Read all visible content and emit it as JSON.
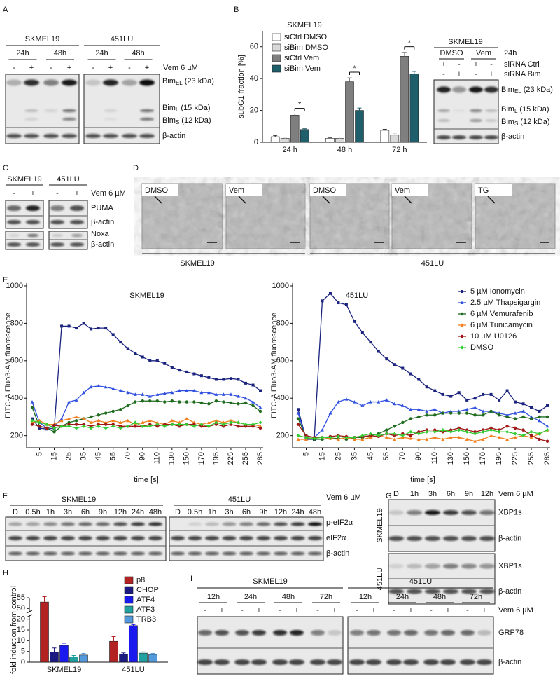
{
  "panel_labels": [
    "A",
    "B",
    "C",
    "D",
    "E",
    "F",
    "G",
    "H",
    "I"
  ],
  "panel_a": {
    "cell_lines": [
      "SKMEL19",
      "451LU"
    ],
    "times": [
      "24h",
      "48h"
    ],
    "lanes": [
      "-",
      "+"
    ],
    "treatment": "Vem 6 µM",
    "bands": [
      {
        "name": "Bim",
        "sub": "EL",
        "rest": "(23 kDa)"
      },
      {
        "name": "Bim",
        "sub": "L",
        "rest": "(15 kDa)"
      },
      {
        "name": "Bim",
        "sub": "S",
        "rest": "(12 kDa)"
      },
      "β-actin"
    ]
  },
  "panel_b_blot": {
    "cell_line": "SKMEL19",
    "groups": [
      "DMSO",
      "Vem"
    ],
    "time": "24h",
    "rows": [
      {
        "label": "siRNA Ctrl",
        "lanes": [
          "+",
          "-",
          "+",
          "-"
        ]
      },
      {
        "label": "siRNA Bim",
        "lanes": [
          "-",
          "+",
          "-",
          "+"
        ]
      }
    ],
    "bands": [
      {
        "name": "Bim",
        "sub": "EL",
        "rest": "(23 kDa)"
      },
      {
        "name": "Bim",
        "sub": "L",
        "rest": "(15 kDa)"
      },
      {
        "name": "Bim",
        "sub": "S",
        "rest": "(12 kDa)"
      },
      "β-actin"
    ]
  },
  "panel_c": {
    "cell_lines": [
      "SKMEL19",
      "451LU"
    ],
    "lanes": [
      "-",
      "+"
    ],
    "treatment": "Vem 6 µM",
    "bands": [
      "PUMA",
      "β-actin",
      "Noxa",
      "β-actin"
    ]
  },
  "panel_d": {
    "images": [
      "DMSO",
      "Vem",
      "DMSO",
      "Vem",
      "TG"
    ],
    "cell_lines": [
      "SKMEL19",
      "451LU"
    ]
  },
  "panel_f": {
    "cell_lines": [
      "SKMEL19",
      "451LU"
    ],
    "lanes": [
      "D",
      "0.5h",
      "1h",
      "3h",
      "6h",
      "9h",
      "12h",
      "24h",
      "48h"
    ],
    "treatment": "Vem 6 µM",
    "bands": [
      "p-eIF2α",
      "eIF2α",
      "β-actin"
    ]
  },
  "panel_g": {
    "lanes": [
      "D",
      "1h",
      "3h",
      "6h",
      "9h",
      "12h"
    ],
    "treatment": "Vem 6 µM",
    "cell_lines": [
      "SKMEL19",
      "451LU"
    ],
    "bands": [
      "XBP1s",
      "β-actin"
    ]
  },
  "panel_i": {
    "cell_lines": [
      "SKMEL19",
      "451LU"
    ],
    "times": [
      "12h",
      "24h",
      "48h",
      "72h"
    ],
    "lanes": [
      "-",
      "+"
    ],
    "treatment": "Vem 6 µM",
    "bands": [
      "GRP78",
      "β-actin"
    ]
  },
  "chart_data": [
    {
      "type": "bar",
      "title": "SKMEL19",
      "ylabel": "subG1 fraction [%]",
      "categories": [
        "24 h",
        "48 h",
        "72 h"
      ],
      "ylim": [
        0,
        70
      ],
      "yticks": [
        0,
        20,
        40,
        60
      ],
      "legend": "upper left",
      "significance": [
        "*",
        "*",
        "*"
      ],
      "series": [
        {
          "name": "siCtrl DMSO",
          "color": "#ffffff",
          "values": [
            3.5,
            2.5,
            7.5
          ],
          "errors": [
            0.8,
            0.5,
            0.6
          ]
        },
        {
          "name": "siBim DMSO",
          "color": "#d9d9d9",
          "values": [
            2.5,
            2.5,
            4.5
          ],
          "errors": [
            0.5,
            0.8,
            1.0
          ]
        },
        {
          "name": "siCtrl Vem",
          "color": "#7f7f7f",
          "values": [
            17,
            38,
            54
          ],
          "errors": [
            0.8,
            2.5,
            2.5
          ]
        },
        {
          "name": "siBim Vem",
          "color": "#1f5f6b",
          "values": [
            8,
            20,
            43
          ],
          "errors": [
            0.5,
            1.5,
            1.5
          ]
        }
      ]
    },
    {
      "type": "line",
      "title": "SKMEL19",
      "ylabel": "FITC-A Fluo3-AM fluorescence",
      "xlabel": "time [s]",
      "categories": [
        null,
        "5",
        null,
        "15",
        null,
        "25",
        null,
        "35",
        null,
        "45",
        null,
        "55",
        null,
        "70",
        null,
        "90",
        null,
        "110",
        null,
        "130",
        null,
        "150",
        null,
        "170",
        null,
        "195",
        null,
        "225",
        null,
        "255",
        null,
        "285"
      ],
      "ylim": [
        150,
        1000
      ],
      "yticks": [
        200,
        400,
        600,
        800,
        1000
      ],
      "legend": null,
      "series": [
        {
          "name": "5 µM Ionomycin",
          "color": "#1a237e",
          "values": [
            290,
            240,
            235,
            240,
            785,
            785,
            775,
            800,
            770,
            775,
            775,
            740,
            700,
            665,
            640,
            620,
            600,
            600,
            585,
            565,
            550,
            540,
            530,
            520,
            510,
            500,
            500,
            505,
            500,
            480,
            470,
            440
          ]
        },
        {
          "name": "2.5 µM Thapsigargin",
          "color": "#2f4fe0",
          "values": [
            380,
            270,
            240,
            250,
            290,
            380,
            390,
            430,
            460,
            465,
            460,
            450,
            440,
            430,
            420,
            420,
            410,
            420,
            425,
            430,
            440,
            440,
            440,
            430,
            430,
            420,
            420,
            420,
            410,
            400,
            380,
            350
          ]
        },
        {
          "name": "6 µM Vemurafenib",
          "color": "#1e6b1e",
          "values": [
            350,
            250,
            240,
            220,
            250,
            270,
            280,
            290,
            300,
            310,
            320,
            330,
            340,
            360,
            380,
            385,
            385,
            385,
            380,
            385,
            380,
            380,
            380,
            375,
            370,
            385,
            380,
            375,
            370,
            375,
            360,
            330
          ]
        },
        {
          "name": "6 µM Tunicamycin",
          "color": "#f08020",
          "values": [
            270,
            280,
            260,
            260,
            280,
            290,
            300,
            290,
            270,
            280,
            270,
            280,
            270,
            280,
            260,
            270,
            280,
            270,
            260,
            280,
            270,
            290,
            270,
            260,
            270,
            280,
            270,
            280,
            270,
            260,
            260,
            250
          ]
        },
        {
          "name": "10 µM U0126",
          "color": "#a01818",
          "values": [
            260,
            250,
            240,
            255,
            250,
            260,
            260,
            260,
            250,
            260,
            260,
            260,
            250,
            250,
            250,
            250,
            260,
            250,
            260,
            260,
            250,
            260,
            260,
            250,
            250,
            260,
            250,
            260,
            250,
            250,
            250,
            240
          ]
        },
        {
          "name": "DMSO",
          "color": "#33cc33",
          "values": [
            280,
            270,
            260,
            240,
            250,
            250,
            240,
            250,
            240,
            250,
            240,
            250,
            240,
            250,
            270,
            250,
            250,
            260,
            250,
            260,
            260,
            260,
            250,
            260,
            250,
            270,
            260,
            270,
            270,
            260,
            260,
            270
          ]
        }
      ]
    },
    {
      "type": "line",
      "title": "451LU",
      "ylabel": "FITC-A Fluo3-AM fluorescence",
      "xlabel": "time [s]",
      "categories": [
        null,
        "5",
        null,
        "15",
        null,
        "25",
        null,
        "35",
        null,
        "45",
        null,
        "55",
        null,
        "70",
        null,
        "90",
        null,
        "110",
        null,
        "130",
        null,
        "150",
        null,
        "170",
        null,
        "195",
        null,
        "225",
        null,
        "255",
        null,
        "285"
      ],
      "ylim": [
        150,
        1000
      ],
      "yticks": [
        200,
        400,
        600,
        800,
        1000
      ],
      "legend": "upper right",
      "series": [
        {
          "name": "5 µM Ionomycin",
          "color": "#1a237e",
          "values": [
            340,
            180,
            180,
            920,
            960,
            910,
            900,
            810,
            750,
            700,
            650,
            610,
            580,
            560,
            530,
            500,
            460,
            440,
            420,
            410,
            430,
            390,
            400,
            420,
            420,
            390,
            440,
            380,
            370,
            350,
            330,
            360
          ]
        },
        {
          "name": "2.5 µM Thapsigargin",
          "color": "#2f4fe0",
          "values": [
            320,
            180,
            190,
            230,
            320,
            380,
            395,
            380,
            360,
            380,
            380,
            390,
            370,
            360,
            340,
            340,
            330,
            340,
            320,
            330,
            330,
            340,
            350,
            330,
            330,
            320,
            310,
            320,
            330,
            300,
            280,
            250
          ]
        },
        {
          "name": "6 µM Vemurafenib",
          "color": "#1e6b1e",
          "values": [
            290,
            190,
            180,
            180,
            185,
            185,
            180,
            190,
            190,
            200,
            210,
            230,
            250,
            270,
            290,
            300,
            310,
            310,
            320,
            320,
            320,
            320,
            310,
            310,
            330,
            310,
            300,
            290,
            300,
            290,
            300,
            300
          ]
        },
        {
          "name": "6 µM Tunicamycin",
          "color": "#f08020",
          "values": [
            180,
            180,
            190,
            190,
            185,
            180,
            190,
            180,
            180,
            190,
            200,
            190,
            180,
            190,
            185,
            180,
            180,
            190,
            180,
            190,
            190,
            180,
            170,
            180,
            200,
            190,
            180,
            190,
            200,
            190,
            210,
            230
          ]
        },
        {
          "name": "10 µM U0126",
          "color": "#a01818",
          "values": [
            260,
            200,
            190,
            190,
            195,
            200,
            195,
            190,
            195,
            200,
            195,
            210,
            200,
            210,
            200,
            220,
            230,
            230,
            220,
            230,
            240,
            230,
            220,
            230,
            240,
            230,
            250,
            240,
            230,
            200,
            180,
            170
          ]
        },
        {
          "name": "DMSO",
          "color": "#33cc33",
          "values": [
            200,
            190,
            185,
            190,
            190,
            195,
            190,
            190,
            200,
            210,
            200,
            210,
            210,
            200,
            220,
            210,
            220,
            220,
            230,
            220,
            230,
            220,
            210,
            220,
            230,
            220,
            220,
            210,
            200,
            220,
            210,
            230
          ]
        }
      ]
    },
    {
      "type": "bar",
      "ylabel": "fold induction from control",
      "categories": [
        "SKMEL19",
        "451LU"
      ],
      "ylim": [
        0,
        55
      ],
      "yticks": [
        0,
        5,
        10,
        15,
        20,
        50,
        55
      ],
      "broken_axis": true,
      "legend": "upper right",
      "series": [
        {
          "name": "p8",
          "color": "#b22222",
          "values": [
            53,
            9.7
          ],
          "errors": [
            2.5,
            2.2
          ]
        },
        {
          "name": "CHOP",
          "color": "#1a1a80",
          "values": [
            4.8,
            3.8
          ],
          "errors": [
            1.8,
            0.5
          ]
        },
        {
          "name": "ATF4",
          "color": "#1a1aee",
          "values": [
            7.8,
            17
          ],
          "errors": [
            1.0,
            0.5
          ]
        },
        {
          "name": "ATF3",
          "color": "#20a0a0",
          "values": [
            2.5,
            4.2
          ],
          "errors": [
            0.6,
            0.6
          ]
        },
        {
          "name": "TRB3",
          "color": "#5599dd",
          "values": [
            3.3,
            3.6
          ],
          "errors": [
            0.8,
            0.5
          ]
        }
      ]
    }
  ]
}
